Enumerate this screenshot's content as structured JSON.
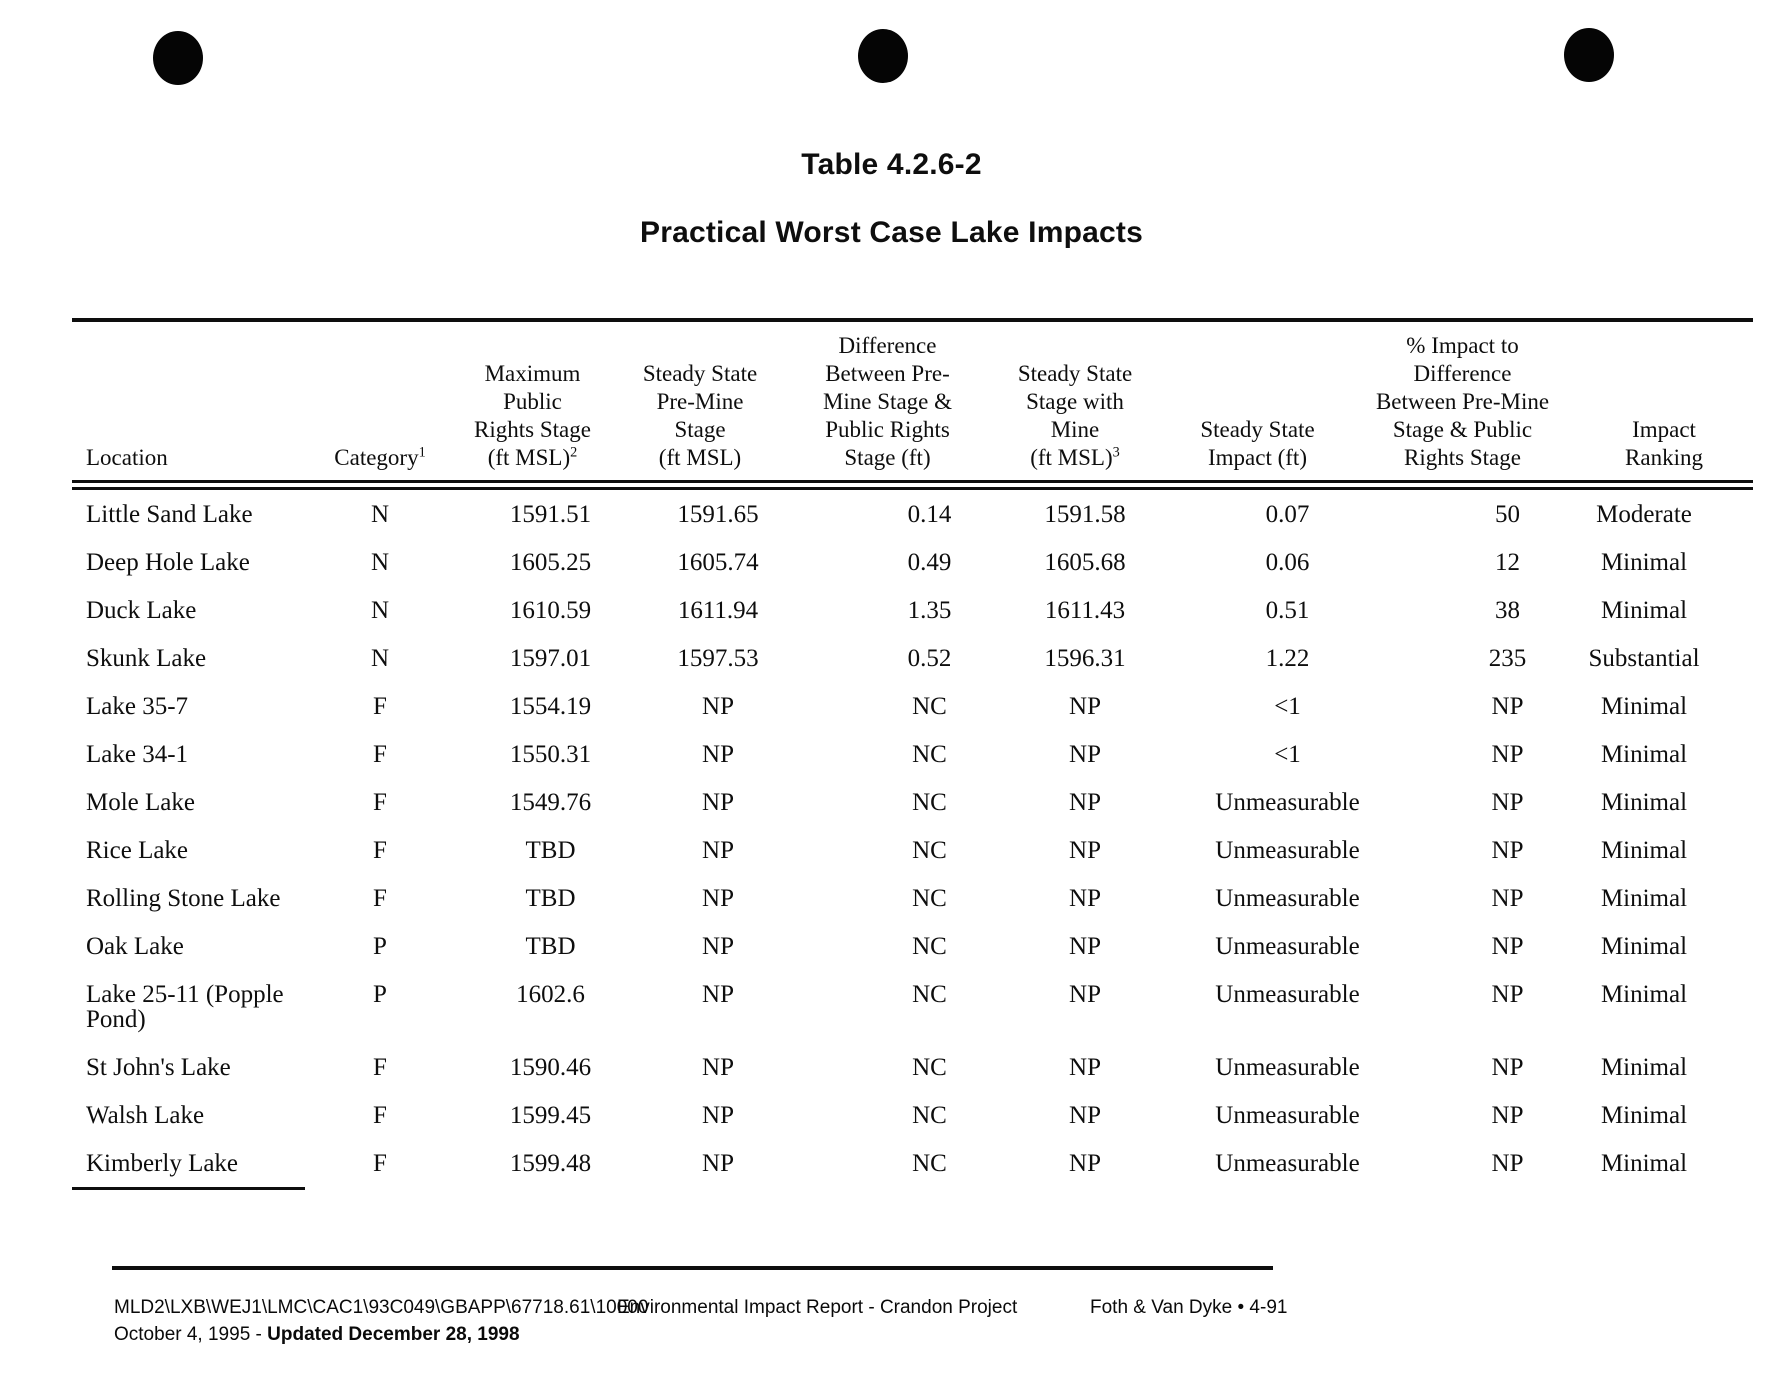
{
  "document": {
    "table_number": "Table 4.2.6-2",
    "table_title": "Practical Worst Case Lake Impacts"
  },
  "table": {
    "columns": [
      {
        "id": "location",
        "lines": [
          "Location"
        ],
        "sup": ""
      },
      {
        "id": "category",
        "lines": [
          "Category"
        ],
        "sup": "1"
      },
      {
        "id": "max-public-rights-stage",
        "lines": [
          "Maximum",
          "Public",
          "Rights Stage",
          "(ft MSL)"
        ],
        "sup": "2"
      },
      {
        "id": "steady-state-pre-mine",
        "lines": [
          "Steady State",
          "Pre-Mine",
          "Stage",
          "(ft MSL)"
        ],
        "sup": ""
      },
      {
        "id": "difference-pre-mine-public-rights",
        "lines": [
          "Difference",
          "Between Pre-",
          "Mine Stage &",
          "Public Rights",
          "Stage (ft)"
        ],
        "sup": ""
      },
      {
        "id": "steady-state-with-mine",
        "lines": [
          "Steady State",
          "Stage with",
          "Mine",
          "(ft MSL)"
        ],
        "sup": "3"
      },
      {
        "id": "steady-state-impact",
        "lines": [
          "Steady State",
          "Impact (ft)"
        ],
        "sup": ""
      },
      {
        "id": "pct-impact-to-difference",
        "lines": [
          "% Impact to",
          "Difference",
          "Between Pre-Mine",
          "Stage & Public",
          "Rights Stage"
        ],
        "sup": ""
      },
      {
        "id": "impact-ranking",
        "lines": [
          "Impact",
          "Ranking"
        ],
        "sup": ""
      }
    ],
    "rows": [
      [
        "Little Sand Lake",
        "N",
        "1591.51",
        "1591.65",
        "0.14",
        "1591.58",
        "0.07",
        "50",
        "Moderate"
      ],
      [
        "Deep Hole Lake",
        "N",
        "1605.25",
        "1605.74",
        "0.49",
        "1605.68",
        "0.06",
        "12",
        "Minimal"
      ],
      [
        "Duck Lake",
        "N",
        "1610.59",
        "1611.94",
        "1.35",
        "1611.43",
        "0.51",
        "38",
        "Minimal"
      ],
      [
        "Skunk Lake",
        "N",
        "1597.01",
        "1597.53",
        "0.52",
        "1596.31",
        "1.22",
        "235",
        "Substantial"
      ],
      [
        "Lake 35-7",
        "F",
        "1554.19",
        "NP",
        "NC",
        "NP",
        "<1",
        "NP",
        "Minimal"
      ],
      [
        "Lake 34-1",
        "F",
        "1550.31",
        "NP",
        "NC",
        "NP",
        "<1",
        "NP",
        "Minimal"
      ],
      [
        "Mole Lake",
        "F",
        "1549.76",
        "NP",
        "NC",
        "NP",
        "Unmeasurable",
        "NP",
        "Minimal"
      ],
      [
        "Rice Lake",
        "F",
        "TBD",
        "NP",
        "NC",
        "NP",
        "Unmeasurable",
        "NP",
        "Minimal"
      ],
      [
        "Rolling Stone Lake",
        "F",
        "TBD",
        "NP",
        "NC",
        "NP",
        "Unmeasurable",
        "NP",
        "Minimal"
      ],
      [
        "Oak Lake",
        "P",
        "TBD",
        "NP",
        "NC",
        "NP",
        "Unmeasurable",
        "NP",
        "Minimal"
      ],
      [
        "Lake 25-11 (Popple Pond)",
        "P",
        "1602.6",
        "NP",
        "NC",
        "NP",
        "Unmeasurable",
        "NP",
        "Minimal"
      ],
      [
        "St John's Lake",
        "F",
        "1590.46",
        "NP",
        "NC",
        "NP",
        "Unmeasurable",
        "NP",
        "Minimal"
      ],
      [
        "Walsh Lake",
        "F",
        "1599.45",
        "NP",
        "NC",
        "NP",
        "Unmeasurable",
        "NP",
        "Minimal"
      ],
      [
        "Kimberly Lake",
        "F",
        "1599.48",
        "NP",
        "NC",
        "NP",
        "Unmeasurable",
        "NP",
        "Minimal"
      ]
    ]
  },
  "footer": {
    "file_path": "MLD2\\LXB\\WEJ1\\LMC\\CAC1\\93C049\\GBAPP\\67718.61\\10000",
    "report_name": "Environmental Impact Report - Crandon Project",
    "page_reference": "Foth & Van Dyke • 4-91",
    "date_line_normal": "October 4, 1995 - ",
    "date_line_bold": "Updated December 28, 1998"
  },
  "colors": {
    "ink": "#0e0e0e",
    "paper": "#ffffff"
  }
}
